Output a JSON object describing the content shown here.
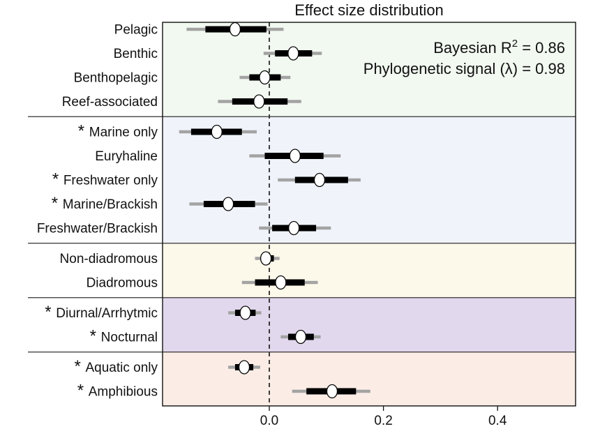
{
  "chart_data": {
    "type": "forest",
    "title": "Effect size distribution",
    "xlabel": "",
    "xlim": [
      -0.19,
      0.535
    ],
    "xticks": [
      0.0,
      0.2,
      0.4
    ],
    "xtick_labels": [
      "0.0",
      "0.2",
      "0.4"
    ],
    "annotations": {
      "r2_prefix": "Bayesian R",
      "r2_sup": "2",
      "r2_value": " = 0.86",
      "lambda": "Phylogenetic signal (λ) = 0.98"
    },
    "groups": [
      {
        "color": "#f2f9f1",
        "rows": [
          {
            "label": "Pelagic",
            "star": false,
            "mean": -0.06,
            "inner": [
              -0.112,
              -0.005
            ],
            "outer": [
              -0.145,
              0.025
            ]
          },
          {
            "label": "Benthic",
            "star": false,
            "mean": 0.042,
            "inner": [
              0.01,
              0.075
            ],
            "outer": [
              -0.01,
              0.092
            ]
          },
          {
            "label": "Benthopelagic",
            "star": false,
            "mean": -0.008,
            "inner": [
              -0.035,
              0.02
            ],
            "outer": [
              -0.052,
              0.037
            ]
          },
          {
            "label": "Reef-associated",
            "star": false,
            "mean": -0.018,
            "inner": [
              -0.065,
              0.032
            ],
            "outer": [
              -0.09,
              0.056
            ]
          }
        ]
      },
      {
        "color": "#f0f3fa",
        "rows": [
          {
            "label": "Marine only",
            "star": true,
            "mean": -0.092,
            "inner": [
              -0.137,
              -0.048
            ],
            "outer": [
              -0.158,
              -0.022
            ]
          },
          {
            "label": "Euryhaline",
            "star": false,
            "mean": 0.045,
            "inner": [
              -0.008,
              0.095
            ],
            "outer": [
              -0.035,
              0.125
            ]
          },
          {
            "label": "Freshwater only",
            "star": true,
            "mean": 0.088,
            "inner": [
              0.045,
              0.138
            ],
            "outer": [
              0.015,
              0.16
            ]
          },
          {
            "label": "Marine/Brackish",
            "star": true,
            "mean": -0.072,
            "inner": [
              -0.115,
              -0.025
            ],
            "outer": [
              -0.14,
              -0.003
            ]
          },
          {
            "label": "Freshwater/Brackish",
            "star": false,
            "mean": 0.043,
            "inner": [
              0.005,
              0.082
            ],
            "outer": [
              -0.018,
              0.108
            ]
          }
        ]
      },
      {
        "color": "#fcf8ea",
        "rows": [
          {
            "label": "Non-diadromous",
            "star": false,
            "mean": -0.006,
            "inner": [
              -0.015,
              0.008
            ],
            "outer": [
              -0.025,
              0.018
            ]
          },
          {
            "label": "Diadromous",
            "star": false,
            "mean": 0.02,
            "inner": [
              -0.025,
              0.062
            ],
            "outer": [
              -0.048,
              0.085
            ]
          }
        ]
      },
      {
        "color": "#e2d8ed",
        "rows": [
          {
            "label": "Diurnal/Arrhytmic",
            "star": true,
            "mean": -0.042,
            "inner": [
              -0.06,
              -0.024
            ],
            "outer": [
              -0.072,
              -0.014
            ]
          },
          {
            "label": "Nocturnal",
            "star": true,
            "mean": 0.055,
            "inner": [
              0.033,
              0.078
            ],
            "outer": [
              0.02,
              0.09
            ]
          }
        ]
      },
      {
        "color": "#fbede6",
        "rows": [
          {
            "label": "Aquatic only",
            "star": true,
            "mean": -0.044,
            "inner": [
              -0.06,
              -0.028
            ],
            "outer": [
              -0.072,
              -0.016
            ]
          },
          {
            "label": "Amphibious",
            "star": true,
            "mean": 0.11,
            "inner": [
              0.065,
              0.152
            ],
            "outer": [
              0.04,
              0.177
            ]
          }
        ]
      }
    ]
  }
}
